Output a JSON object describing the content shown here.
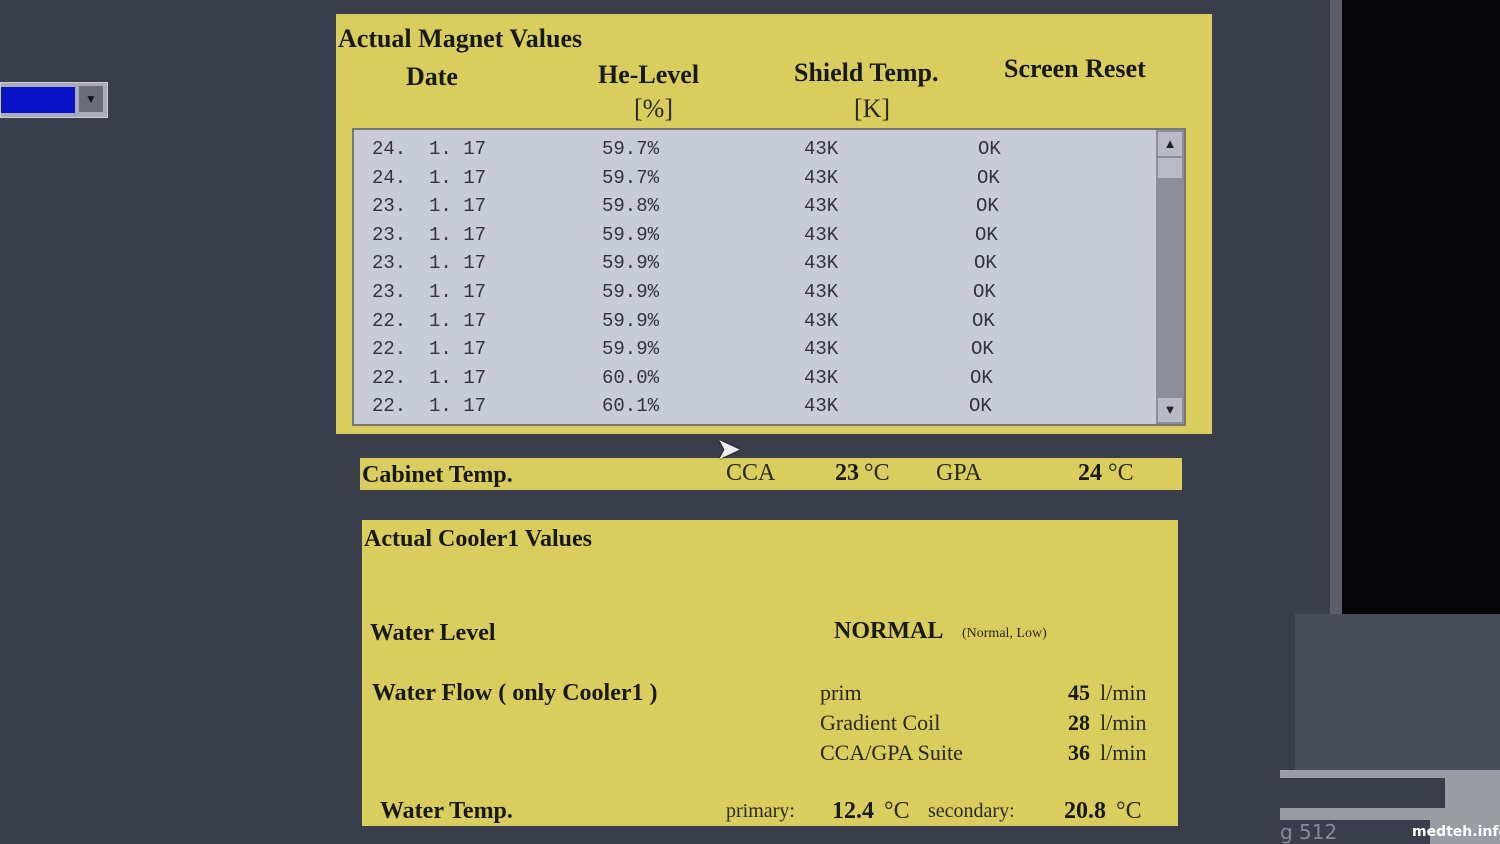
{
  "left": {
    "dropdown_color": "#0a12c8"
  },
  "magnet": {
    "title": "Actual Magnet Values",
    "headers": {
      "date": "Date",
      "he": "He-Level",
      "he_unit": "[%]",
      "shield": "Shield Temp.",
      "shield_unit": "[K]",
      "reset": "Screen Reset"
    },
    "rows": [
      [
        "24.  1. 17",
        "59.7%",
        "43K",
        "OK"
      ],
      [
        "24.  1. 17",
        "59.7%",
        "43K",
        "OK"
      ],
      [
        "23.  1. 17",
        "59.8%",
        "43K",
        "OK"
      ],
      [
        "23.  1. 17",
        "59.9%",
        "43K",
        "OK"
      ],
      [
        "23.  1. 17",
        "59.9%",
        "43K",
        "OK"
      ],
      [
        "23.  1. 17",
        "59.9%",
        "43K",
        "OK"
      ],
      [
        "22.  1. 17",
        "59.9%",
        "43K",
        "OK"
      ],
      [
        "22.  1. 17",
        "59.9%",
        "43K",
        "OK"
      ],
      [
        "22.  1. 17",
        "60.0%",
        "43K",
        "OK"
      ],
      [
        "22.  1. 17",
        "60.1%",
        "43K",
        "OK"
      ]
    ]
  },
  "cabinet": {
    "label": "Cabinet Temp.",
    "cca": "CCA",
    "cca_val": "23",
    "unit": "°C",
    "gpa": "GPA",
    "gpa_val": "24"
  },
  "cooler": {
    "title": "Actual Cooler1 Values",
    "water_level_label": "Water Level",
    "water_level": "NORMAL",
    "water_level_opts": "(Normal, Low)",
    "flow_label": "Water Flow ( only Cooler1 )",
    "flows": [
      [
        "prim",
        "45",
        "l/min"
      ],
      [
        "Gradient Coil",
        "28",
        "l/min"
      ],
      [
        "CCA/GPA Suite",
        "36",
        "l/min"
      ]
    ],
    "temp_label": "Water Temp.",
    "primary": "primary:",
    "primary_val": "12.4",
    "secondary": "secondary:",
    "secondary_val": "20.8",
    "unit": "°C"
  },
  "right": {
    "partial_text": "g 512"
  },
  "watermark": "medteh.info"
}
